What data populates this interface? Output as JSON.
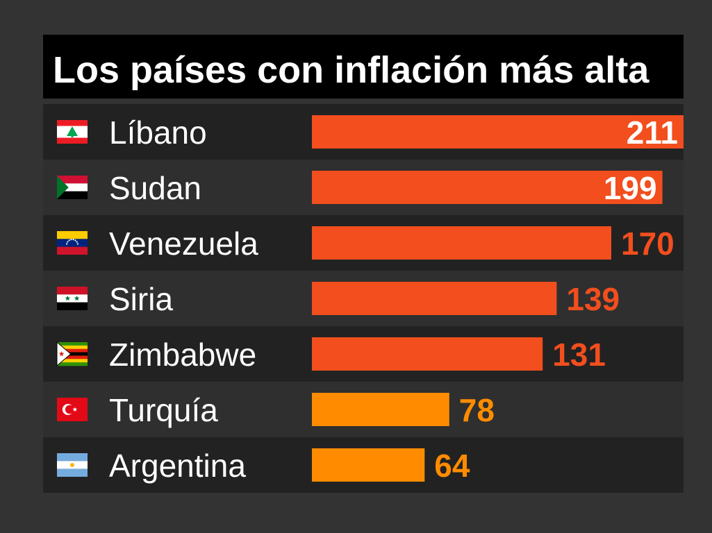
{
  "chart_data": {
    "type": "bar",
    "orientation": "horizontal",
    "title": "Los países con inflación más alta",
    "categories": [
      "Líbano",
      "Sudan",
      "Venezuela",
      "Siria",
      "Zimbabwe",
      "Turquía",
      "Argentina"
    ],
    "values": [
      211,
      199,
      170,
      139,
      131,
      78,
      64
    ],
    "flags": [
      "lebanon-flag-icon",
      "sudan-flag-icon",
      "venezuela-flag-icon",
      "syria-flag-icon",
      "zimbabwe-flag-icon",
      "turkey-flag-icon",
      "argentina-flag-icon"
    ],
    "bar_colors": [
      "#f24e1e",
      "#f24e1e",
      "#f24e1e",
      "#f24e1e",
      "#f24e1e",
      "#ff8c00",
      "#ff8c00"
    ],
    "value_colors": [
      "#ffffff",
      "#ffffff",
      "#f24e1e",
      "#f24e1e",
      "#f24e1e",
      "#ff8c00",
      "#ff8c00"
    ],
    "xlim": [
      0,
      211
    ],
    "grid": false,
    "legend": "none"
  }
}
